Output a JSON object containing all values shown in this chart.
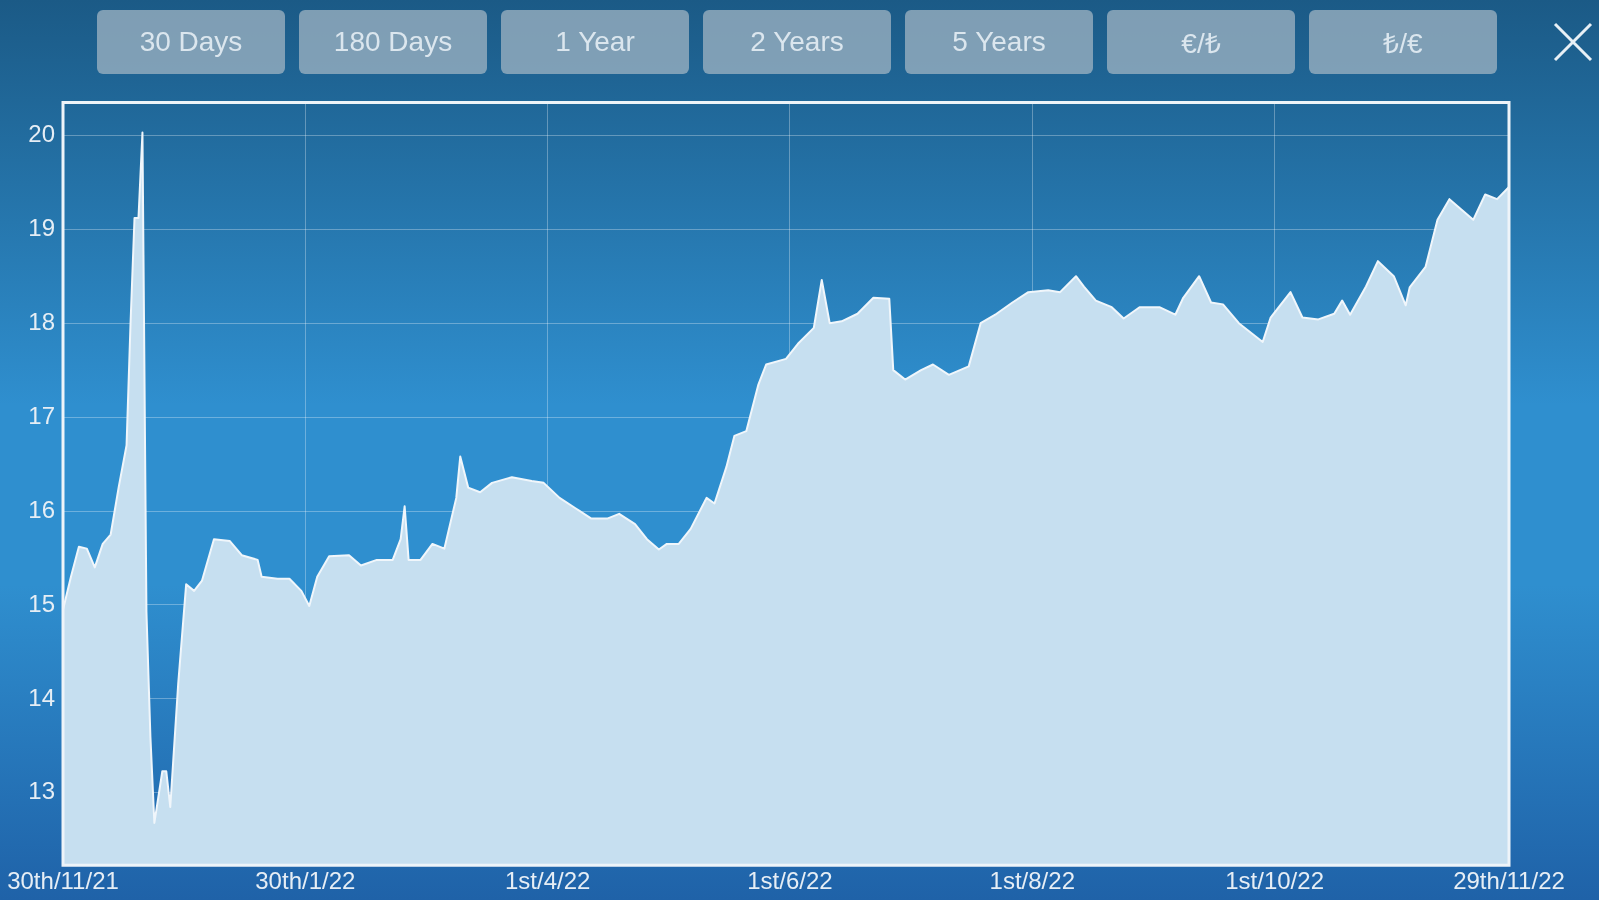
{
  "chart_data": {
    "type": "area",
    "annotations": [
      "30 Days",
      "180 Days",
      "1 Year",
      "2 Years",
      "5 Years",
      "€/₺",
      "₺/€"
    ],
    "x": [
      "2021-11-30",
      "2021-12-02",
      "2021-12-04",
      "2021-12-06",
      "2021-12-08",
      "2021-12-10",
      "2021-12-12",
      "2021-12-14",
      "2021-12-16",
      "2021-12-17",
      "2021-12-18",
      "2021-12-19",
      "2021-12-20",
      "2021-12-21",
      "2021-12-22",
      "2021-12-23",
      "2021-12-25",
      "2021-12-26",
      "2021-12-27",
      "2021-12-29",
      "2021-12-31",
      "2022-01-02",
      "2022-01-04",
      "2022-01-07",
      "2022-01-11",
      "2022-01-14",
      "2022-01-18",
      "2022-01-19",
      "2022-01-23",
      "2022-01-26",
      "2022-01-29",
      "2022-01-31",
      "2022-02-02",
      "2022-02-05",
      "2022-02-10",
      "2022-02-13",
      "2022-02-17",
      "2022-02-21",
      "2022-02-23",
      "2022-02-24",
      "2022-02-25",
      "2022-02-28",
      "2022-03-03",
      "2022-03-06",
      "2022-03-09",
      "2022-03-10",
      "2022-03-12",
      "2022-03-15",
      "2022-03-18",
      "2022-03-23",
      "2022-03-28",
      "2022-03-31",
      "2022-04-04",
      "2022-04-08",
      "2022-04-12",
      "2022-04-16",
      "2022-04-19",
      "2022-04-23",
      "2022-04-26",
      "2022-04-29",
      "2022-05-01",
      "2022-05-04",
      "2022-05-07",
      "2022-05-11",
      "2022-05-13",
      "2022-05-16",
      "2022-05-18",
      "2022-05-21",
      "2022-05-24",
      "2022-05-26",
      "2022-05-31",
      "2022-06-03",
      "2022-06-07",
      "2022-06-09",
      "2022-06-11",
      "2022-06-14",
      "2022-06-18",
      "2022-06-22",
      "2022-06-26",
      "2022-06-27",
      "2022-06-30",
      "2022-07-04",
      "2022-07-07",
      "2022-07-11",
      "2022-07-16",
      "2022-07-19",
      "2022-07-23",
      "2022-07-27",
      "2022-07-31",
      "2022-08-05",
      "2022-08-08",
      "2022-08-12",
      "2022-08-14",
      "2022-08-17",
      "2022-08-21",
      "2022-08-24",
      "2022-08-28",
      "2022-09-02",
      "2022-09-06",
      "2022-09-08",
      "2022-09-12",
      "2022-09-15",
      "2022-09-18",
      "2022-09-22",
      "2022-09-28",
      "2022-09-30",
      "2022-10-05",
      "2022-10-08",
      "2022-10-12",
      "2022-10-16",
      "2022-10-18",
      "2022-10-20",
      "2022-10-24",
      "2022-10-27",
      "2022-10-31",
      "2022-11-03",
      "2022-11-04",
      "2022-11-08",
      "2022-11-11",
      "2022-11-14",
      "2022-11-17",
      "2022-11-20",
      "2022-11-23",
      "2022-11-26",
      "2022-11-29"
    ],
    "series": [
      {
        "color": "#c6dff0",
        "values": [
          14.95,
          15.3,
          15.62,
          15.6,
          15.4,
          15.65,
          15.75,
          16.25,
          16.7,
          18.0,
          19.12,
          19.12,
          20.03,
          14.93,
          13.6,
          12.68,
          13.23,
          13.23,
          12.85,
          14.16,
          15.22,
          15.15,
          15.26,
          15.7,
          15.68,
          15.53,
          15.48,
          15.3,
          15.28,
          15.28,
          15.15,
          14.99,
          15.3,
          15.52,
          15.53,
          15.42,
          15.48,
          15.48,
          15.7,
          16.05,
          15.48,
          15.48,
          15.65,
          15.6,
          16.14,
          16.58,
          16.25,
          16.2,
          16.3,
          16.36,
          16.32,
          16.3,
          16.14,
          16.03,
          15.92,
          15.92,
          15.97,
          15.86,
          15.7,
          15.59,
          15.65,
          15.65,
          15.81,
          16.14,
          16.08,
          16.47,
          16.8,
          16.85,
          17.34,
          17.56,
          17.62,
          17.78,
          17.95,
          18.46,
          18.0,
          18.02,
          18.1,
          18.27,
          18.26,
          17.5,
          17.4,
          17.5,
          17.56,
          17.45,
          17.54,
          18.0,
          18.1,
          18.22,
          18.33,
          18.35,
          18.33,
          18.5,
          18.39,
          18.24,
          18.17,
          18.05,
          18.17,
          18.17,
          18.09,
          18.27,
          18.5,
          18.22,
          18.2,
          18.0,
          17.8,
          18.06,
          18.33,
          18.06,
          18.04,
          18.1,
          18.24,
          18.09,
          18.39,
          18.66,
          18.5,
          18.19,
          18.38,
          18.6,
          19.1,
          19.32,
          19.21,
          19.1,
          19.37,
          19.32,
          19.45
        ]
      }
    ],
    "xlim": [
      "2021-11-30",
      "2022-11-29"
    ],
    "xticks": [
      {
        "value": "2021-11-30",
        "label": "30th/11/21"
      },
      {
        "value": "2022-01-30",
        "label": "30th/1/22"
      },
      {
        "value": "2022-04-01",
        "label": "1st/4/22"
      },
      {
        "value": "2022-06-01",
        "label": "1st/6/22"
      },
      {
        "value": "2022-08-01",
        "label": "1st/8/22"
      },
      {
        "value": "2022-10-01",
        "label": "1st/10/22"
      },
      {
        "value": "2022-11-29",
        "label": "29th/11/22"
      }
    ],
    "ylim": [
      12.23,
      20.35
    ],
    "yticks": [
      13,
      14,
      15,
      16,
      17,
      18,
      19,
      20
    ],
    "grid": true
  }
}
